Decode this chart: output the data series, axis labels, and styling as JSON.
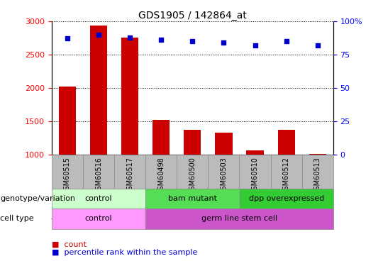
{
  "title": "GDS1905 / 142864_at",
  "samples": [
    "GSM60515",
    "GSM60516",
    "GSM60517",
    "GSM60498",
    "GSM60500",
    "GSM60503",
    "GSM60510",
    "GSM60512",
    "GSM60513"
  ],
  "counts": [
    2020,
    2940,
    2760,
    1520,
    1370,
    1330,
    1055,
    1370,
    1010
  ],
  "percentile_ranks": [
    87,
    90,
    88,
    86,
    85,
    84,
    82,
    85,
    82
  ],
  "ylim_left": [
    1000,
    3000
  ],
  "ylim_right": [
    0,
    100
  ],
  "yticks_left": [
    1000,
    1500,
    2000,
    2500,
    3000
  ],
  "yticks_right": [
    0,
    25,
    50,
    75,
    100
  ],
  "bar_color": "#cc0000",
  "dot_color": "#0000cc",
  "genotype_groups": [
    {
      "label": "control",
      "start": 0,
      "end": 3,
      "color": "#ccffcc"
    },
    {
      "label": "bam mutant",
      "start": 3,
      "end": 6,
      "color": "#55dd55"
    },
    {
      "label": "dpp overexpressed",
      "start": 6,
      "end": 9,
      "color": "#33cc33"
    }
  ],
  "celltype_groups": [
    {
      "label": "control",
      "start": 0,
      "end": 3,
      "color": "#ff99ff"
    },
    {
      "label": "germ line stem cell",
      "start": 3,
      "end": 9,
      "color": "#cc55cc"
    }
  ],
  "genotype_label": "genotype/variation",
  "celltype_label": "cell type",
  "legend_count_label": "count",
  "legend_pct_label": "percentile rank within the sample",
  "tick_bg_color": "#bbbbbb",
  "title_fontsize": 10,
  "axis_tick_fontsize": 8,
  "sample_fontsize": 7,
  "row_label_fontsize": 8,
  "row_content_fontsize": 8,
  "legend_fontsize": 8
}
